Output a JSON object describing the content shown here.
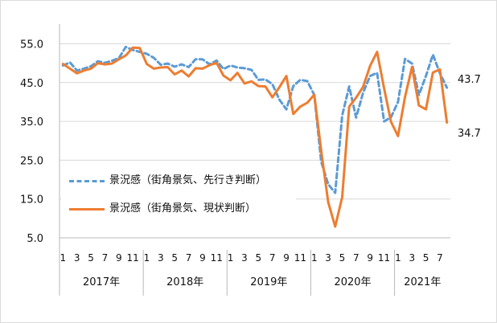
{
  "colors": {
    "forecast": "#5b9bd5",
    "current": "#ed7d31",
    "axis": "#b8b8b8",
    "grid": "#d9d9d9"
  },
  "chart_data": {
    "type": "line",
    "x": [
      "2017-01",
      "2017-02",
      "2017-03",
      "2017-04",
      "2017-05",
      "2017-06",
      "2017-07",
      "2017-08",
      "2017-09",
      "2017-10",
      "2017-11",
      "2017-12",
      "2018-01",
      "2018-02",
      "2018-03",
      "2018-04",
      "2018-05",
      "2018-06",
      "2018-07",
      "2018-08",
      "2018-09",
      "2018-10",
      "2018-11",
      "2018-12",
      "2019-01",
      "2019-02",
      "2019-03",
      "2019-04",
      "2019-05",
      "2019-06",
      "2019-07",
      "2019-08",
      "2019-09",
      "2019-10",
      "2019-11",
      "2019-12",
      "2020-01",
      "2020-02",
      "2020-03",
      "2020-04",
      "2020-05",
      "2020-06",
      "2020-07",
      "2020-08",
      "2020-09",
      "2020-10",
      "2020-11",
      "2020-12",
      "2021-01",
      "2021-02",
      "2021-03",
      "2021-04",
      "2021-05",
      "2021-06",
      "2021-07",
      "2021-08"
    ],
    "tick_labels": [
      "1",
      "",
      "3",
      "",
      "5",
      "",
      "7",
      "",
      "9",
      "",
      "11",
      "",
      "1",
      "",
      "3",
      "",
      "5",
      "",
      "7",
      "",
      "9",
      "",
      "11",
      "",
      "1",
      "",
      "3",
      "",
      "5",
      "",
      "7",
      "",
      "9",
      "",
      "11",
      "",
      "1",
      "",
      "3",
      "",
      "5",
      "",
      "7",
      "",
      "9",
      "",
      "11",
      "",
      "1",
      "",
      "3",
      "",
      "5",
      "",
      "7",
      ""
    ],
    "year_labels": [
      {
        "label": "2017年",
        "start": 0,
        "end": 12
      },
      {
        "label": "2018年",
        "start": 12,
        "end": 24
      },
      {
        "label": "2019年",
        "start": 24,
        "end": 36
      },
      {
        "label": "2020年",
        "start": 36,
        "end": 48
      },
      {
        "label": "2021年",
        "start": 48,
        "end": 56
      }
    ],
    "y_ticks": [
      "5.0",
      "15.0",
      "25.0",
      "35.0",
      "45.0",
      "55.0"
    ],
    "ylim": [
      5,
      58
    ],
    "grid": true,
    "legend_position": "lower-left",
    "series": [
      {
        "name": "景況感（街角景気、先行き判断）",
        "style": "dashed",
        "end_label": "43.7",
        "values": [
          49.4,
          50.2,
          48.1,
          48.6,
          49.2,
          50.5,
          50.1,
          50.6,
          51.3,
          54.2,
          53.4,
          52.9,
          52.4,
          51.4,
          49.6,
          49.9,
          49.1,
          49.7,
          49.0,
          51.0,
          51.0,
          49.7,
          50.7,
          48.5,
          49.4,
          48.9,
          48.7,
          48.3,
          45.7,
          45.8,
          44.6,
          40.6,
          38.1,
          44.1,
          45.7,
          45.4,
          41.8,
          24.6,
          18.8,
          16.6,
          36.5,
          44.0,
          36.0,
          42.4,
          46.7,
          47.5,
          35.0,
          36.1,
          40.0,
          51.1,
          49.9,
          41.8,
          46.7,
          52.2,
          47.4,
          43.7
        ]
      },
      {
        "name": "景況感（街角景気、現状判断）",
        "style": "solid",
        "end_label": "34.7",
        "values": [
          49.8,
          48.6,
          47.4,
          48.1,
          48.6,
          50.0,
          49.7,
          49.9,
          51.0,
          52.0,
          54.0,
          53.9,
          49.8,
          48.6,
          48.9,
          49.0,
          47.1,
          48.1,
          46.6,
          48.7,
          48.6,
          49.5,
          50.1,
          46.8,
          45.6,
          47.5,
          44.8,
          45.3,
          44.1,
          44.0,
          41.2,
          43.8,
          46.7,
          36.9,
          38.8,
          39.8,
          41.9,
          27.4,
          14.2,
          7.9,
          15.5,
          38.8,
          41.1,
          43.9,
          49.3,
          52.9,
          43.5,
          34.9,
          31.2,
          41.3,
          49.0,
          39.1,
          38.1,
          47.6,
          48.4,
          34.7
        ]
      }
    ]
  }
}
